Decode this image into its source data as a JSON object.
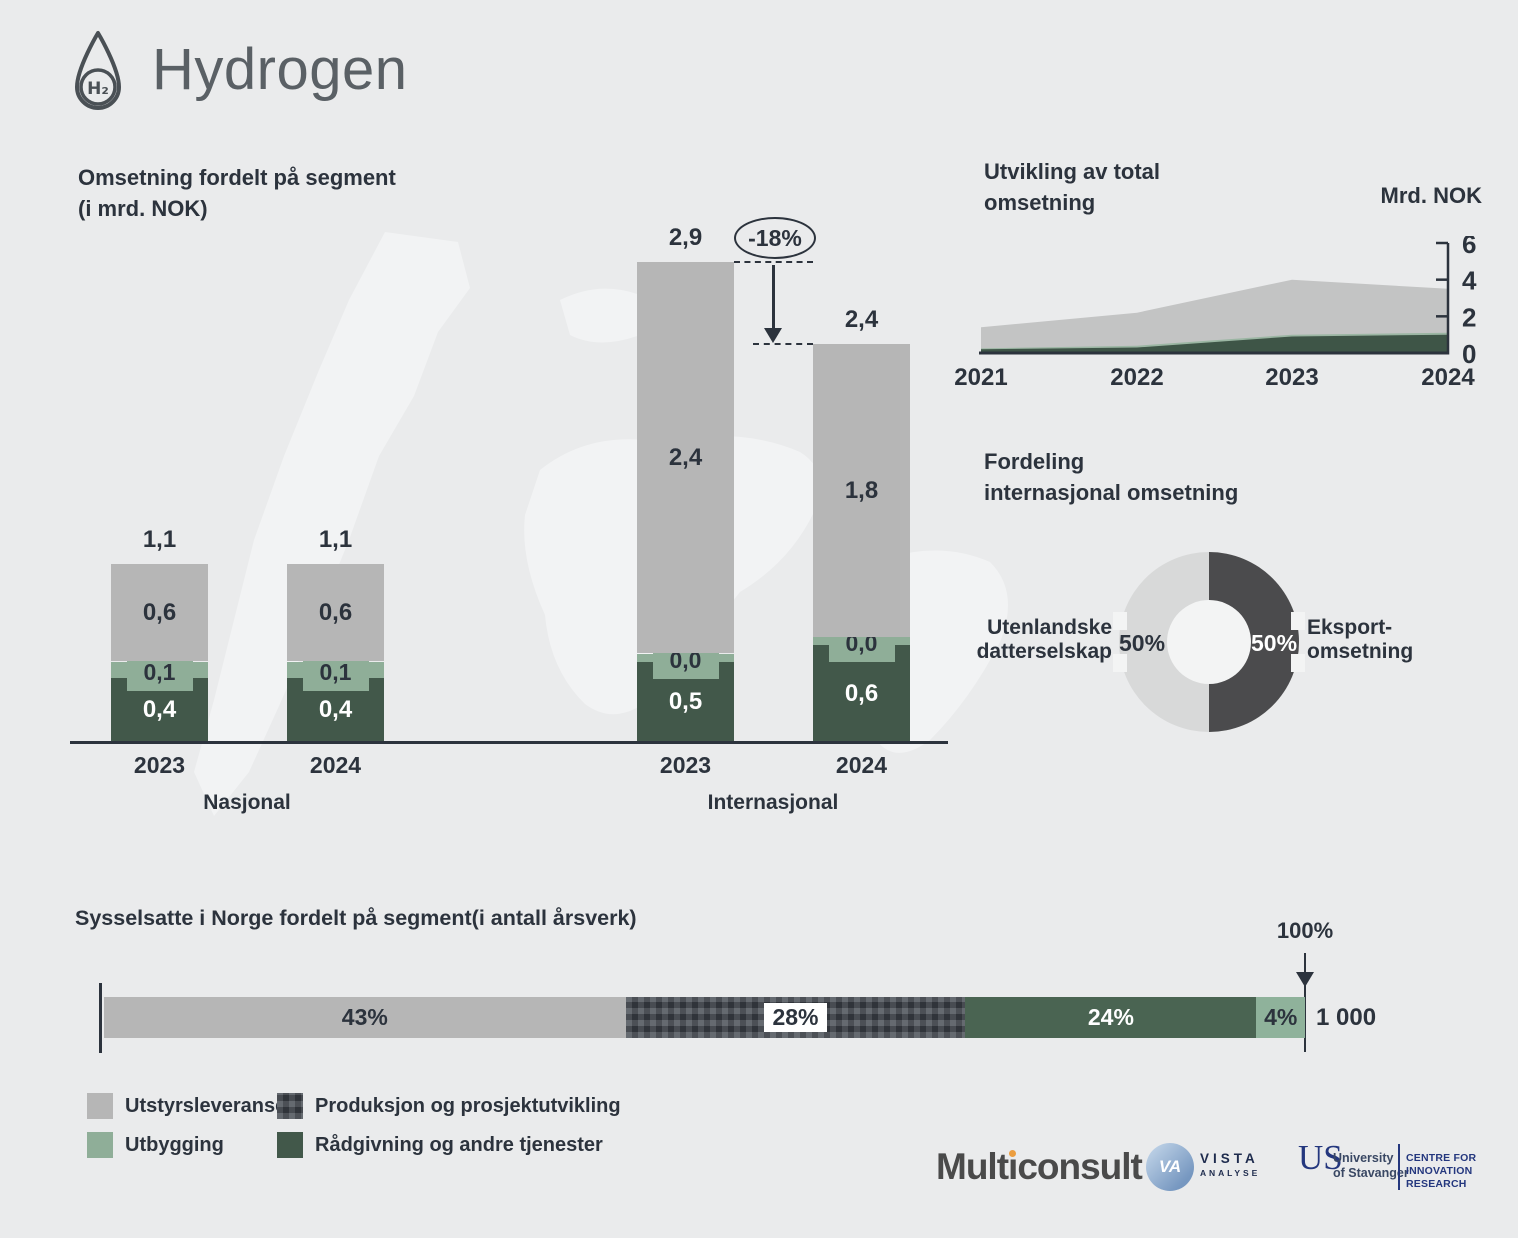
{
  "page": {
    "title": "Hydrogen",
    "icon_label": "H₂",
    "background": "#eaebec"
  },
  "colors": {
    "heading": "#2c333d",
    "title_gray": "#5a6065",
    "axis": "#2c333d",
    "bar_gray": "#b6b6b6",
    "bar_light_green": "#8fae98",
    "bar_dark_green": "#42584a",
    "donut_light": "#d8d9d9",
    "donut_dark": "#4b4b4d",
    "accent_orange": "#eb9d3f",
    "logo_blue": "#24377e"
  },
  "segment_section": {
    "title_line1": "Omsetning fordelt på segment",
    "title_line2": "(i mrd. NOK)"
  },
  "total_section": {
    "title_line1": "Utvikling av total",
    "title_line2": "omsetning",
    "unit_label": "Mrd. NOK"
  },
  "donut_section": {
    "title_line1": "Fordeling",
    "title_line2": "internasjonal omsetning",
    "left_label_line1": "Utenlandske",
    "left_label_line2": "datterselskap",
    "right_label_line1": "Eksport-",
    "right_label_line2": "omsetning"
  },
  "employment_section": {
    "title": "Sysselsatte i Norge fordelt på segment(i antall årsverk)"
  },
  "legend": {
    "items": [
      {
        "label": "Utstyrsleveranse",
        "swatch": "#b6b6b6"
      },
      {
        "label": "Utbygging",
        "swatch": "#8fae98"
      },
      {
        "label": "Produksjon og prosjektutvikling",
        "swatch": "plaid"
      },
      {
        "label": "Rådgivning og andre tjenester",
        "swatch": "#42584a"
      }
    ]
  },
  "logos": {
    "multiconsult": "Multiconsult",
    "vista_mark": "VA",
    "vista_line1": "VISTA",
    "vista_line2": "ANALYSE",
    "uis_mark": "US",
    "uis_line1": "University",
    "uis_line2": "of Stavanger",
    "centre_line1": "CENTRE FOR",
    "centre_line2": "INNOVATION RESEARCH"
  },
  "chart_data": [
    {
      "id": "omsetning_fordelt_pa_segment",
      "type": "bar",
      "stacked": true,
      "unit": "mrd. NOK",
      "title": "Omsetning fordelt på segment (i mrd. NOK)",
      "categories": [
        "2023",
        "2024",
        "2023",
        "2024"
      ],
      "group_labels": [
        "Nasjonal",
        "Internasjonal"
      ],
      "category_group": [
        0,
        0,
        1,
        1
      ],
      "series": [
        {
          "name": "Rådgivning og andre tjenester",
          "color": "#42584a",
          "label_style": "white",
          "values": [
            0.4,
            0.4,
            0.5,
            0.6
          ]
        },
        {
          "name": "Utbygging",
          "color": "#8fae98",
          "label_style": "badge",
          "values": [
            0.1,
            0.1,
            0.0,
            0.0
          ]
        },
        {
          "name": "Utstyrsleveranse",
          "color": "#b6b6b6",
          "label_style": "dark",
          "values": [
            0.6,
            0.6,
            2.4,
            1.8
          ]
        }
      ],
      "totals": [
        1.1,
        1.1,
        2.9,
        2.4
      ],
      "annotation": {
        "text": "-18%",
        "between": [
          "Internasjonal 2023",
          "Internasjonal 2024"
        ]
      }
    },
    {
      "id": "utvikling_total_omsetning",
      "type": "area",
      "stacked": true,
      "title": "Utvikling av total omsetning",
      "unit": "Mrd. NOK",
      "x": [
        "2021",
        "2022",
        "2023",
        "2024"
      ],
      "series": [
        {
          "name": "Rådgivning og andre tjenester",
          "color": "#3e5547",
          "values": [
            0.2,
            0.3,
            0.9,
            1.0
          ]
        },
        {
          "name": "Utbygging",
          "color": "#9bb6a3",
          "values": [
            0.05,
            0.1,
            0.1,
            0.1
          ]
        },
        {
          "name": "Utstyrsleveranse",
          "color": "#c3c4c4",
          "values": [
            1.15,
            1.8,
            3.0,
            2.4
          ]
        }
      ],
      "totals": [
        1.4,
        2.2,
        4.0,
        3.5
      ],
      "ylim": [
        0,
        6
      ],
      "yticks": [
        0,
        2,
        4,
        6
      ],
      "axis_side": "right",
      "grid": false
    },
    {
      "id": "fordeling_internasjonal_omsetning",
      "type": "pie",
      "donut": true,
      "title": "Fordeling internasjonal omsetning",
      "slices": [
        {
          "label": "Utenlandske datterselskap",
          "value": 50,
          "display": "50%",
          "color": "#d8d9d9"
        },
        {
          "label": "Eksport-omsetning",
          "value": 50,
          "display": "50%",
          "color": "#4b4b4d"
        }
      ]
    },
    {
      "id": "sysselsatte_i_norge",
      "type": "bar",
      "orientation": "horizontal",
      "stacked": true,
      "title": "Sysselsatte i Norge fordelt på segment(i antall årsverk)",
      "axis_max_label": "100%",
      "total": "1 000",
      "segments": [
        {
          "label": "Utstyrsleveranse",
          "value": 43,
          "display": "43%",
          "color": "#b6b6b6",
          "label_color": "#2c333d"
        },
        {
          "label": "Produksjon og prosjektutvikling",
          "value": 28,
          "display": "28%",
          "color": "plaid",
          "label_color": "#2c333d",
          "label_boxed": true
        },
        {
          "label": "Rådgivning og andre tjenester",
          "value": 24,
          "display": "24%",
          "color": "#4a6452",
          "label_color": "#ffffff"
        },
        {
          "label": "Utbygging",
          "value": 4,
          "display": "4%",
          "color": "#8fb29b",
          "label_color": "#2c333d"
        }
      ]
    }
  ]
}
